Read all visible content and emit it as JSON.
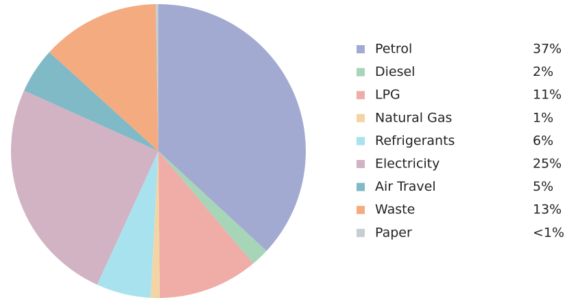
{
  "chart_data": {
    "type": "pie",
    "categories": [
      "Petrol",
      "Diesel",
      "LPG",
      "Natural Gas",
      "Refrigerants",
      "Electricity",
      "Air Travel",
      "Waste",
      "Paper"
    ],
    "values": [
      37,
      2,
      11,
      1,
      6,
      25,
      5,
      13,
      0.3
    ],
    "value_labels": [
      "37%",
      "2%",
      "11%",
      "1%",
      "6%",
      "25%",
      "5%",
      "13%",
      "<1%"
    ],
    "colors": [
      "#a3aad1",
      "#a6d5b8",
      "#f0aca7",
      "#f3d5a5",
      "#a8e2ef",
      "#d2b3c4",
      "#80bac6",
      "#f4ab80",
      "#c5ced1"
    ]
  }
}
